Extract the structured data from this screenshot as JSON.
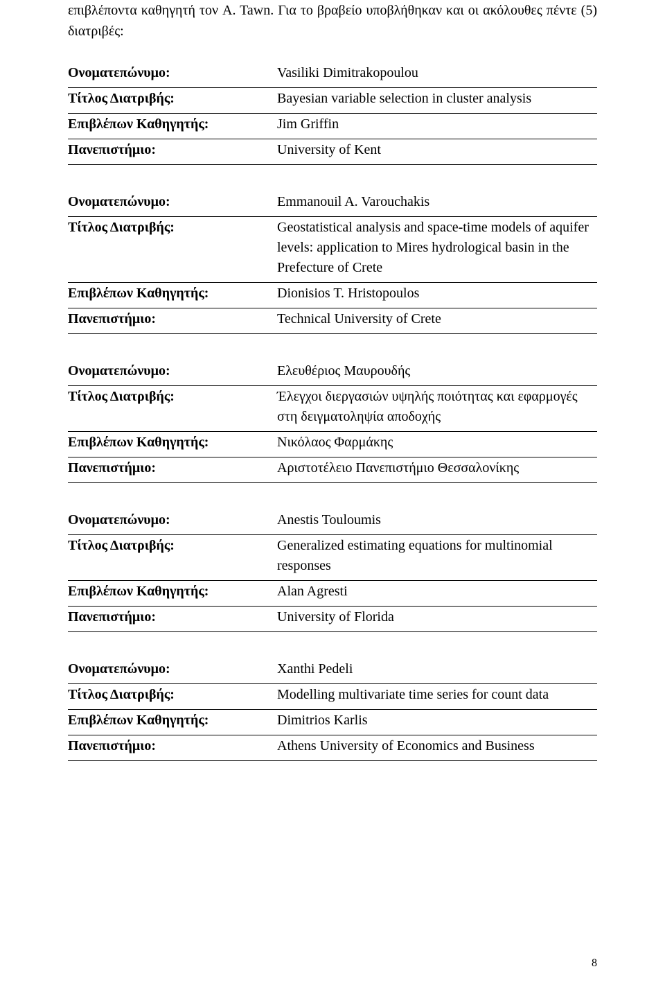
{
  "intro": "επιβλέποντα καθηγητή τον A. Tawn. Για το βραβείο υποβλήθηκαν και οι ακόλουθες πέντε (5) διατριβές:",
  "labels": {
    "name": "Ονοματεπώνυμο:",
    "title": "Τίτλος Διατριβής:",
    "supervisor": "Επιβλέπων Καθηγητής:",
    "university": "Πανεπιστήμιο:"
  },
  "entries": [
    {
      "name": "Vasiliki Dimitrakopoulou",
      "title": "Bayesian variable selection in cluster analysis",
      "supervisor": "Jim Griffin",
      "university": "University of Kent"
    },
    {
      "name": "Emmanouil A. Varouchakis",
      "title": "Geostatistical analysis and space-time models of aquifer levels: application to Mires hydrological basin in the Prefecture of Crete",
      "supervisor": "Dionisios T. Hristopoulos",
      "university": "Technical University of Crete"
    },
    {
      "name": "Ελευθέριος Μαυρουδής",
      "title": "Έλεγχοι διεργασιών υψηλής ποιότητας και εφαρμογές στη δειγματοληψία αποδοχής",
      "supervisor": "Νικόλαος Φαρμάκης",
      "university": "Αριστοτέλειο Πανεπιστήμιο Θεσσαλονίκης"
    },
    {
      "name": "Anestis Touloumis",
      "title": "Generalized estimating equations for multinomial responses",
      "supervisor": "Alan Agresti",
      "university": "University of Florida"
    },
    {
      "name": "Xanthi Pedeli",
      "title": "Modelling multivariate time series for count data",
      "supervisor": "Dimitrios Karlis",
      "university": "Athens University of Economics and Business"
    }
  ],
  "page_number": "8"
}
